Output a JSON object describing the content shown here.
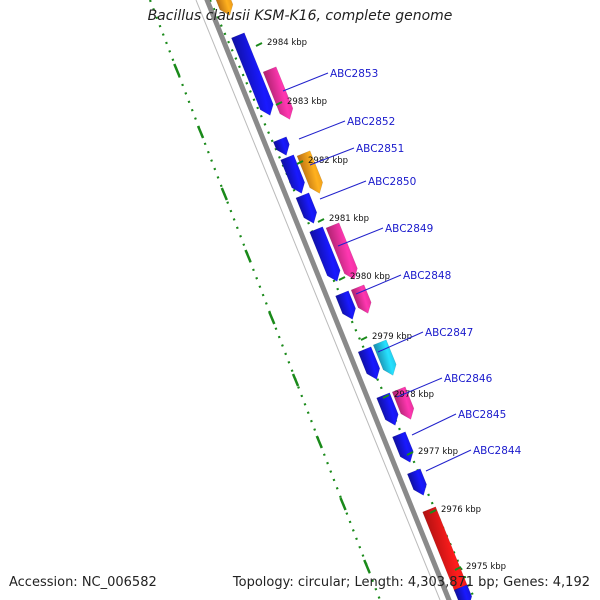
{
  "title": "Bacillus clausii KSM-K16, complete genome",
  "footer": {
    "accession": "Accession: NC_006582",
    "summary": "Topology: circular; Length: 4,303,871 bp; Genes: 4,192"
  },
  "colors": {
    "backbone": "#8a8a8a",
    "gene_blue": "#1616e0",
    "gene_pink": "#f0309a",
    "gene_orange": "#ff9a1a",
    "gene_cyan": "#22c4ee",
    "gene_red": "#ee1818",
    "dots": "#1a8a1a",
    "label_line": "#2222cc"
  },
  "ticks": [
    {
      "label": "2984 kbp"
    },
    {
      "label": "2983 kbp"
    },
    {
      "label": "2982 kbp"
    },
    {
      "label": "2981 kbp"
    },
    {
      "label": "2980 kbp"
    },
    {
      "label": "2979 kbp"
    },
    {
      "label": "2978 kbp"
    },
    {
      "label": "2977 kbp"
    },
    {
      "label": "2976 kbp"
    },
    {
      "label": "2975 kbp"
    }
  ],
  "gene_labels": [
    {
      "name": "ABC2853"
    },
    {
      "name": "ABC2852"
    },
    {
      "name": "ABC2851"
    },
    {
      "name": "ABC2850"
    },
    {
      "name": "ABC2849"
    },
    {
      "name": "ABC2848"
    },
    {
      "name": "ABC2847"
    },
    {
      "name": "ABC2846"
    },
    {
      "name": "ABC2845"
    },
    {
      "name": "ABC2844"
    }
  ]
}
